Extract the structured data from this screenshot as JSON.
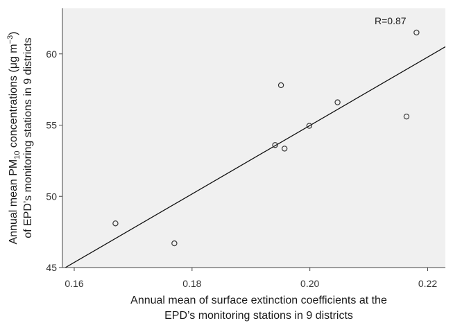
{
  "chart_data": {
    "type": "scatter",
    "title": "",
    "xlabel_lines": [
      "Annual mean of surface extinction coefficients at the",
      "EPD’s monitoring stations in 9 districts"
    ],
    "ylabel_lines": [
      {
        "pre": "Annual mean PM",
        "sub": "10",
        "mid": " concentrations (μg m",
        "sup": "−3",
        "post": ")"
      },
      {
        "pre": "of  EPD’s monitoring stations in 9 districts",
        "sub": "",
        "mid": "",
        "sup": "",
        "post": ""
      }
    ],
    "xlim": [
      0.158,
      0.223
    ],
    "ylim": [
      45,
      63.2
    ],
    "xticks": [
      0.16,
      0.18,
      0.2,
      0.22
    ],
    "xtick_labels": [
      "0.16",
      "0.18",
      "0.20",
      "0.22"
    ],
    "yticks": [
      45,
      50,
      55,
      60
    ],
    "ytick_labels": [
      "45",
      "50",
      "55",
      "60"
    ],
    "grid": false,
    "points": [
      {
        "x": 0.167,
        "y": 48.1
      },
      {
        "x": 0.177,
        "y": 46.7
      },
      {
        "x": 0.1941,
        "y": 53.6
      },
      {
        "x": 0.1951,
        "y": 57.8
      },
      {
        "x": 0.1957,
        "y": 53.35
      },
      {
        "x": 0.1999,
        "y": 54.95
      },
      {
        "x": 0.2047,
        "y": 56.6
      },
      {
        "x": 0.2164,
        "y": 55.6
      },
      {
        "x": 0.2181,
        "y": 61.5
      }
    ],
    "fit_line": {
      "x": [
        0.1585,
        0.223
      ],
      "y": [
        45.0,
        60.5
      ]
    },
    "annotation": "R=0.87",
    "colors": {
      "plot_background": "#f0f0f0",
      "frame": "#444444",
      "marker": "#333333",
      "line": "#111111"
    }
  }
}
